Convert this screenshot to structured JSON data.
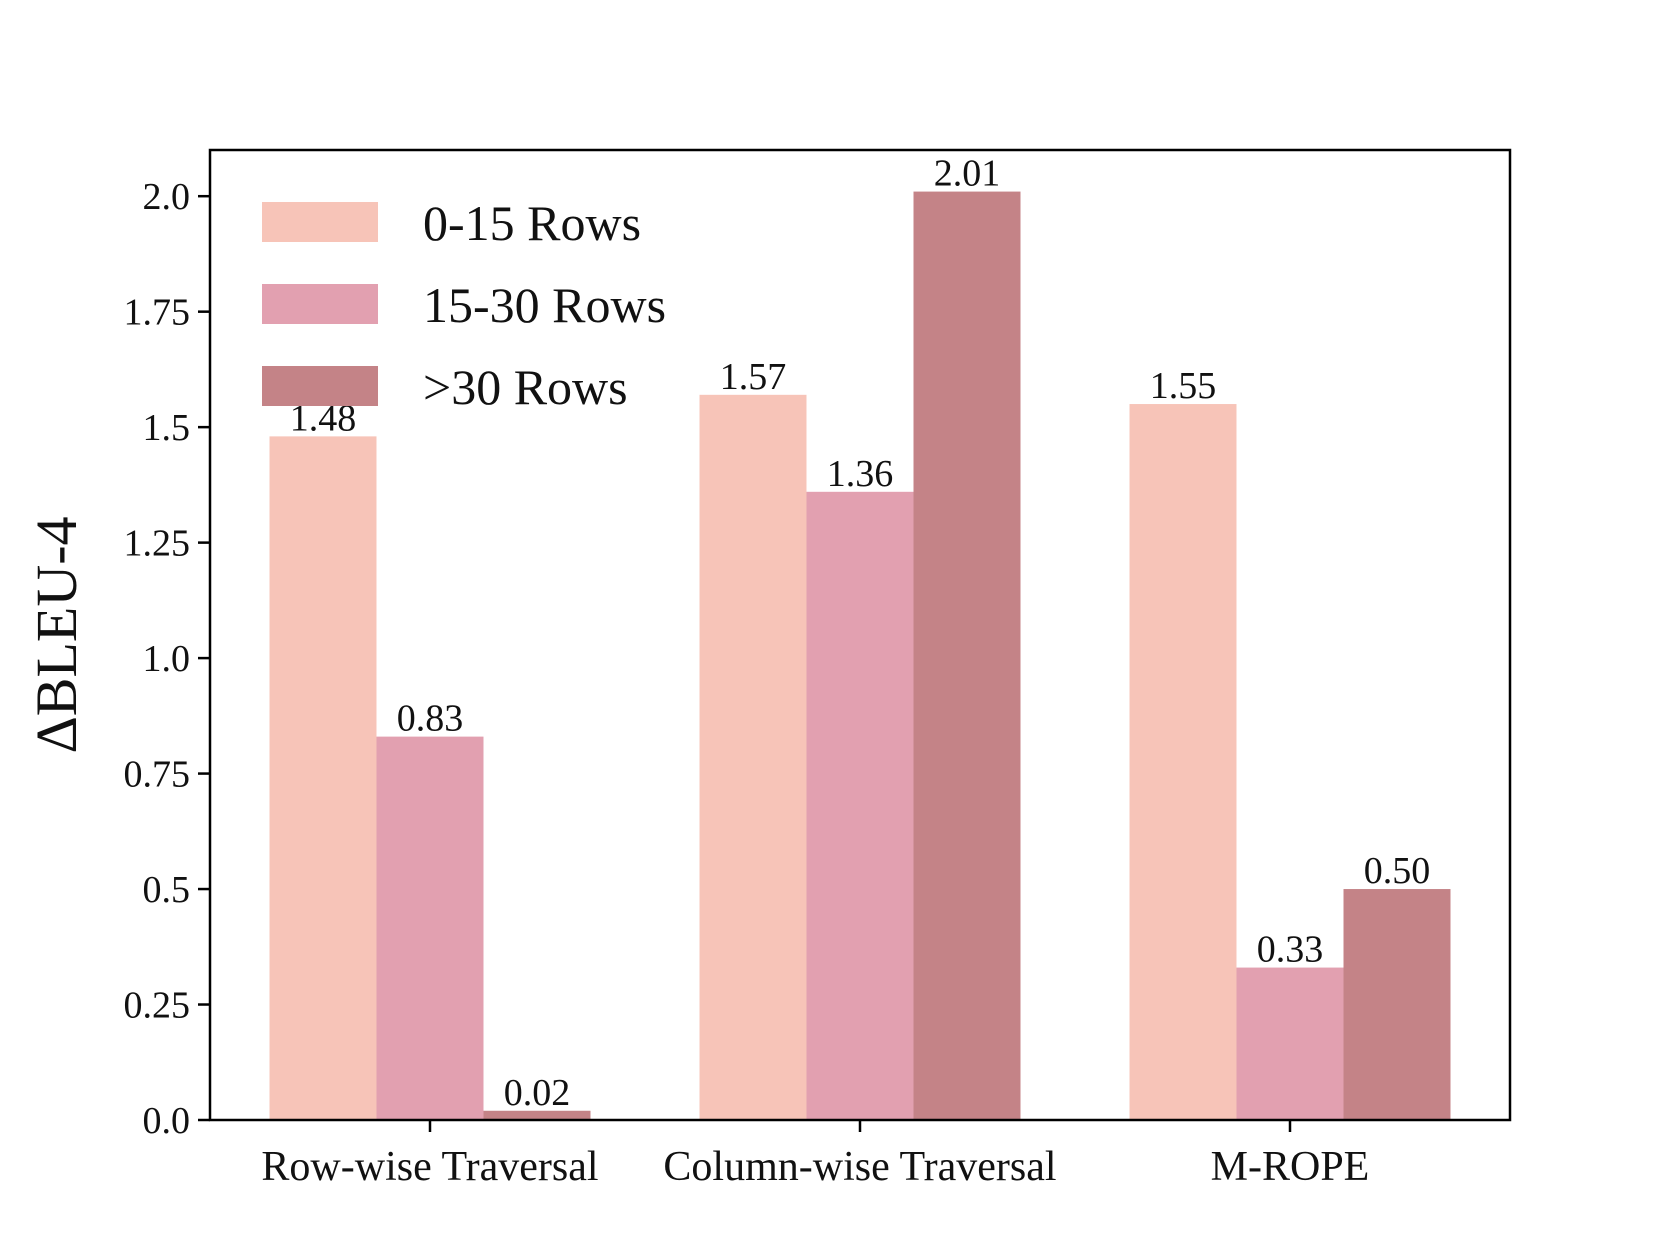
{
  "chart_data": {
    "type": "bar",
    "title": "",
    "xlabel": "",
    "ylabel": "ΔBLEU-4",
    "ylim": [
      0,
      2.1
    ],
    "yticks": [
      "0.0",
      "0.25",
      "0.5",
      "0.75",
      "1.0",
      "1.25",
      "1.5",
      "1.75",
      "2.0"
    ],
    "categories": [
      "Row-wise Traversal",
      "Column-wise Traversal",
      "M-ROPE"
    ],
    "series": [
      {
        "name": "0-15 Rows",
        "values": [
          1.48,
          1.57,
          1.55
        ],
        "labels": [
          "1.48",
          "1.57",
          "1.55"
        ],
        "color": "#f7c4b8"
      },
      {
        "name": "15-30 Rows",
        "values": [
          0.83,
          1.36,
          0.33
        ],
        "labels": [
          "0.83",
          "1.36",
          "0.33"
        ],
        "color": "#e2a0b0"
      },
      {
        "name": ">30 Rows",
        "values": [
          0.02,
          2.01,
          0.5
        ],
        "labels": [
          "0.02",
          "2.01",
          "0.50"
        ],
        "color": "#c48387"
      }
    ],
    "legend_position": "top-left",
    "grid": false
  }
}
